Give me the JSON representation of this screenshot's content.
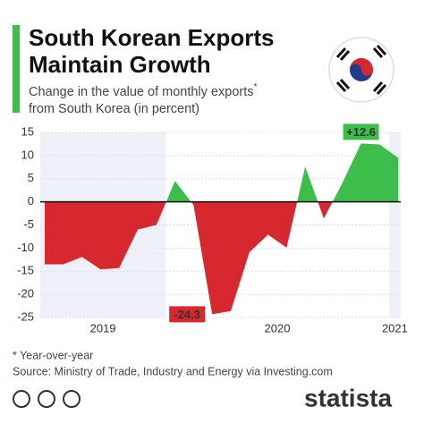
{
  "chart_data": {
    "type": "area",
    "title_lines": [
      "South Korean Exports",
      "Maintain Growth"
    ],
    "subtitle_lines": [
      "Change in the value of monthly exports",
      "from South Korea (in percent)"
    ],
    "subtitle_mark": "*",
    "values": [
      -13.5,
      -13.5,
      -11.9,
      -14.6,
      -14.3,
      -6,
      -5,
      4.5,
      -0.7,
      -24.3,
      -23.6,
      -10.9,
      -7.1,
      -9.9,
      7.6,
      -3.6,
      4.1,
      12.6,
      12.4,
      9.5
    ],
    "value_labels": [
      null,
      null,
      null,
      null,
      null,
      null,
      null,
      null,
      null,
      "-24.3",
      null,
      null,
      null,
      null,
      null,
      null,
      null,
      "+12.6",
      null,
      null
    ],
    "year_bands": [
      {
        "label": "2019",
        "span": 7
      },
      {
        "label": "2020",
        "span": 12
      },
      {
        "label": "2021",
        "span": 1
      }
    ],
    "positive_color": "#3dbd4a",
    "negative_color": "#d7282f",
    "ylim": [
      -25,
      15
    ],
    "yticks": [
      -25,
      -20,
      -15,
      -10,
      -5,
      0,
      5,
      10,
      15
    ],
    "grid": true,
    "note": "* Year-over-year",
    "source": "Source: Ministry of Trade, Industry and Energy via Investing.com",
    "logo": "statista"
  }
}
